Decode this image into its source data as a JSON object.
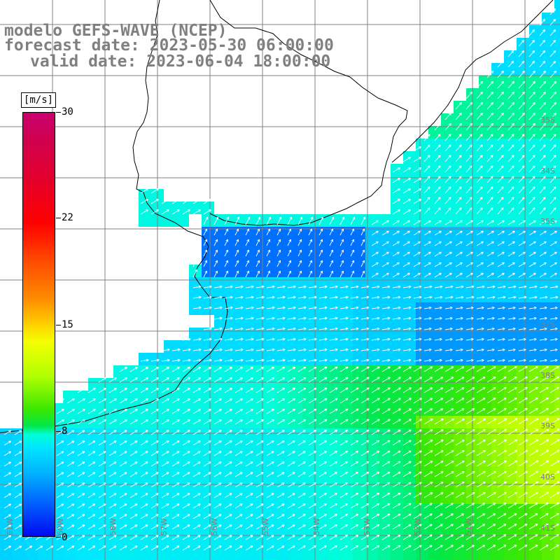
{
  "title": {
    "line1": "modelo GEFS-WAVE (NCEP)",
    "line2": "forecast date: 2023-05-30 06:00:00",
    "line3": "valid date: 2023-06-04 18:00:00"
  },
  "colorbar": {
    "units": "[m/s]",
    "ticks": [
      "30",
      "22",
      "15",
      "8",
      "0"
    ],
    "tick_values": [
      30,
      22,
      15,
      8,
      0
    ],
    "min": 0,
    "max": 30,
    "colors": [
      "#0008f0",
      "#0064ff",
      "#00b4ff",
      "#00e6ff",
      "#00ffd8",
      "#00e84a",
      "#3ce800",
      "#b4ff00",
      "#f4ff00",
      "#ffd000",
      "#ff8c00",
      "#ff4a00",
      "#ff0000",
      "#e4002a",
      "#c8006f"
    ]
  },
  "lat_labels": [
    "35S",
    "34S",
    "35S",
    "37S",
    "38S",
    "39S",
    "40S",
    "41S"
  ],
  "lon_labels": [
    "61W",
    "60W",
    "58W",
    "57W",
    "56W",
    "55W",
    "54W",
    "53W",
    "52W",
    "51W"
  ],
  "colors": {
    "land": "#ffffff",
    "grid": "#808080",
    "coastline": "#000000",
    "vectors": "#ffffff",
    "title": "#808080"
  }
}
